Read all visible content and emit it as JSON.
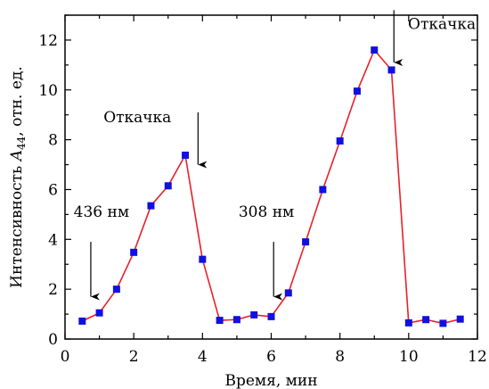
{
  "chart_data": {
    "type": "line",
    "xlabel": "Время, мин",
    "ylabel_main": "Интенсивность ",
    "ylabel_italic": "A",
    "ylabel_sub": "44",
    "ylabel_rest": ", отн. ед.",
    "xlim": [
      0,
      12
    ],
    "ylim": [
      0,
      13
    ],
    "xticks": [
      0,
      2,
      4,
      6,
      8,
      10,
      12
    ],
    "yticks": [
      0,
      2,
      4,
      6,
      8,
      10,
      12
    ],
    "grid": false,
    "line_color": "#e8202a",
    "marker_color": "#1010e0",
    "series": [
      {
        "x": [
          0.5,
          1.0,
          1.5,
          2.0,
          2.5,
          3.0,
          3.5,
          4.0,
          4.5,
          5.0,
          5.5,
          6.0,
          6.5,
          7.0,
          7.5,
          8.0,
          8.5,
          9.0,
          9.5,
          10.0,
          10.5,
          11.0,
          11.5
        ],
        "y": [
          0.72,
          1.05,
          2.0,
          3.48,
          5.35,
          6.15,
          7.38,
          3.2,
          0.75,
          0.78,
          0.97,
          0.9,
          1.85,
          3.9,
          6.0,
          7.95,
          9.95,
          11.6,
          10.8,
          0.65,
          0.78,
          0.63,
          0.8
        ]
      }
    ],
    "annotations": [
      {
        "id": "a1",
        "text": "436 нм",
        "x": 0.75,
        "label_x": 0.25,
        "label_y": 4.9,
        "arrow_from": 3.9,
        "arrow_to": 1.7
      },
      {
        "id": "a2",
        "text": "Откачка",
        "x": 3.87,
        "label_x": 1.12,
        "label_y": 8.7,
        "arrow_from": 9.1,
        "arrow_to": 7.0
      },
      {
        "id": "a3",
        "text": "308 нм",
        "x": 6.07,
        "label_x": 5.05,
        "label_y": 4.9,
        "arrow_from": 3.9,
        "arrow_to": 1.7
      },
      {
        "id": "a4",
        "text": "Откачка",
        "x": 9.57,
        "label_x": 9.98,
        "label_y": 12.45,
        "arrow_from": 13.2,
        "arrow_to": 11.1
      }
    ]
  }
}
